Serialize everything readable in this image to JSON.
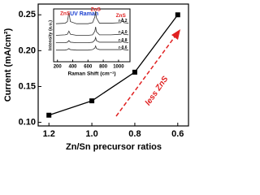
{
  "chart_data": {
    "type": "line",
    "x_label": "Zn/Sn precursor ratios",
    "y_label": "Current (mA/cm²)",
    "x": [
      1.2,
      1.0,
      0.8,
      0.6
    ],
    "values": [
      0.11,
      0.13,
      0.17,
      0.25
    ],
    "color": "#000000",
    "xlim": [
      1.25,
      0.55
    ],
    "xticks": [
      {
        "value": 1.2,
        "label": "1.2"
      },
      {
        "value": 1.0,
        "label": "1.0"
      },
      {
        "value": 0.8,
        "label": "0.8"
      },
      {
        "value": 0.6,
        "label": "0.6"
      }
    ],
    "ylim": [
      0.095,
      0.265
    ],
    "yticks": [
      {
        "value": 0.1,
        "label": "0.10"
      },
      {
        "value": 0.15,
        "label": "0.15"
      },
      {
        "value": 0.2,
        "label": "0.20"
      },
      {
        "value": 0.25,
        "label": "0.25"
      }
    ],
    "annotation": "less ZnS",
    "annotation_color": "#e02020",
    "inset": {
      "type": "line",
      "title": "UV Raman",
      "title_color": "#1a3fd0",
      "x_label": "Raman Shift (cm⁻¹)",
      "y_label": "Intensity (a.u.)",
      "xlim": [
        150,
        1150
      ],
      "ylim": [
        0,
        10
      ],
      "xticks": [
        200,
        400,
        600,
        800,
        1000
      ],
      "x": [
        180,
        300,
        330,
        350,
        370,
        450,
        600,
        660,
        690,
        700,
        710,
        750,
        900,
        1030,
        1050,
        1070,
        1130
      ],
      "series": [
        {
          "name": "r-1.2",
          "color": "#333333",
          "values": [
            7.2,
            7.3,
            7.6,
            9.3,
            7.6,
            7.2,
            7.2,
            7.4,
            8.5,
            9.6,
            8.3,
            7.3,
            7.3,
            7.4,
            8.2,
            7.4,
            7.3
          ]
        },
        {
          "name": "r-1.0",
          "color": "#333333",
          "values": [
            5.0,
            5.1,
            5.2,
            5.8,
            5.2,
            5.0,
            5.0,
            5.1,
            5.8,
            6.6,
            5.7,
            5.1,
            5.1,
            5.2,
            5.6,
            5.2,
            5.1
          ]
        },
        {
          "name": "r-0.8",
          "color": "#333333",
          "values": [
            3.6,
            3.6,
            3.7,
            4.0,
            3.7,
            3.6,
            3.6,
            3.7,
            4.1,
            4.6,
            4.0,
            3.7,
            3.7,
            3.7,
            3.9,
            3.7,
            3.6
          ]
        },
        {
          "name": "r-0.6",
          "color": "#333333",
          "values": [
            2.2,
            2.2,
            2.3,
            2.5,
            2.3,
            2.2,
            2.2,
            2.3,
            2.6,
            3.0,
            2.5,
            2.3,
            2.3,
            2.3,
            2.4,
            2.3,
            2.2
          ]
        }
      ],
      "annotations": [
        {
          "text": "ZnS",
          "x": 300,
          "y": 9.1
        },
        {
          "text": "ZnS",
          "x": 700,
          "y": 9.9
        },
        {
          "text": "ZnS",
          "x": 1030,
          "y": 8.7
        }
      ],
      "annotation_color": "#e02020"
    }
  }
}
